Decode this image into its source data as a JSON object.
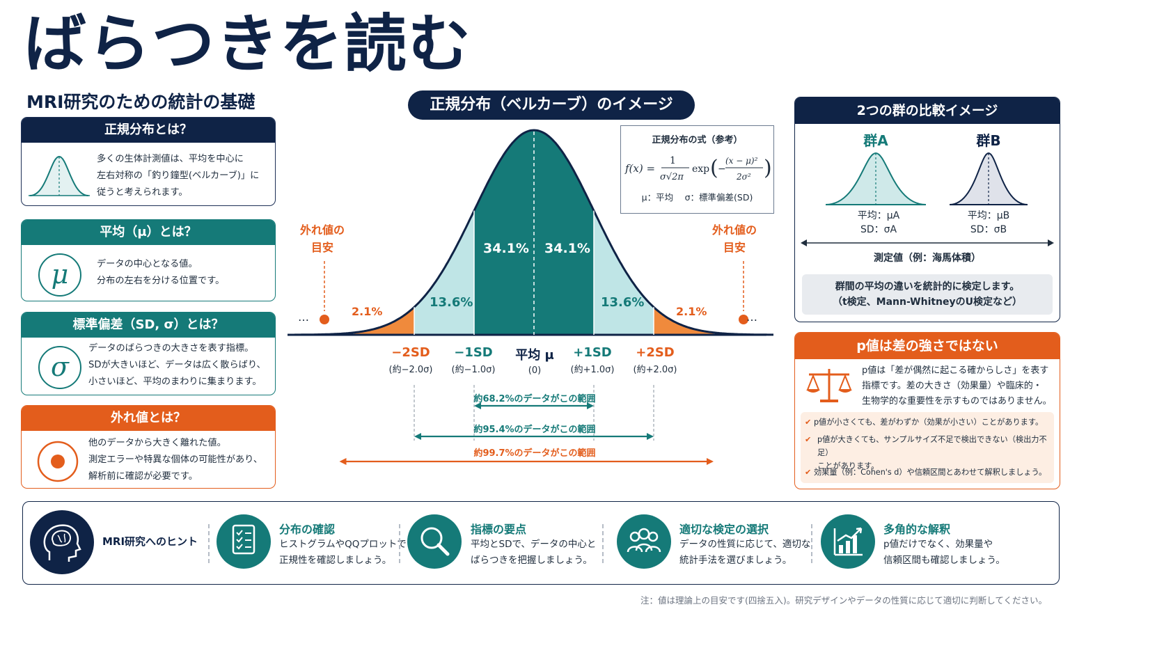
{
  "title": "ばらつきを読む",
  "subtitle": "MRI研究のための統計の基礎",
  "left_cards": [
    {
      "header": "正規分布とは？",
      "text": "多くの生体計測値は、平均を中心に\n左右対称の「釣り鐘型(ベルカーブ)」に\n従うと考えられます。",
      "icon": "bell-curve-icon"
    },
    {
      "header": "平均（μ）とは？",
      "text": "データの中心となる値。\n分布の左右を分ける位置です。",
      "icon_text": "μ"
    },
    {
      "header": "標準偏差（SD, σ）とは？",
      "text": "データのばらつきの大きさを表す指標。\nSDが大きいほど、データは広く散らばり、\n小さいほど、平均のまわりに集まります。",
      "icon_text": "σ"
    },
    {
      "header": "外れ値とは？",
      "text": "他のデータから大きく離れた値。\n測定エラーや特異な個体の可能性があり、\n解析前に確認が必要です。",
      "icon": "target-dot-icon"
    }
  ],
  "center": {
    "pill_title": "正規分布（ベルカーブ）のイメージ",
    "formula_title": "正規分布の式（参考）",
    "formula_legend": "μ：平均　 σ：標準偏差(SD)",
    "percent": {
      "inner_left": "34.1%",
      "inner_right": "34.1%",
      "mid_left": "13.6%",
      "mid_right": "13.6%",
      "tail_left": "2.1%",
      "tail_right": "2.1%"
    },
    "outlier_label_left": "外れ値の\n目安",
    "outlier_label_right": "外れ値の\n目安",
    "ellipsis": "…",
    "axis_labels": [
      {
        "main": "−2SD",
        "sub": "(約−2.0σ)"
      },
      {
        "main": "−1SD",
        "sub": "(約−1.0σ)"
      },
      {
        "main": "平均 μ",
        "sub": "(0)"
      },
      {
        "main": "+1SD",
        "sub": "(約+1.0σ)"
      },
      {
        "main": "+2SD",
        "sub": "(約+2.0σ)"
      }
    ],
    "ranges": [
      {
        "label": "約68.2%のデータがこの範囲",
        "color": "#157a78"
      },
      {
        "label": "約95.4%のデータがこの範囲",
        "color": "#157a78"
      },
      {
        "label": "約99.7%のデータがこの範囲",
        "color": "#e35d1c"
      }
    ],
    "colors": {
      "teal_dark": "#157a78",
      "teal_light": "#bfe5e6",
      "orange": "#f08a3c",
      "navy": "#0f2346"
    }
  },
  "compare": {
    "header": "2つの群の比較イメージ",
    "group_a": {
      "name": "群A",
      "mean": "平均：μA",
      "sd": "SD：σA"
    },
    "group_b": {
      "name": "群B",
      "mean": "平均：μB",
      "sd": "SD：σB"
    },
    "axis_label": "測定値（例：海馬体積）",
    "box_text": "群間の平均の違いを統計的に検定します。\n（t検定、Mann-WhitneyのU検定など）"
  },
  "pvalue": {
    "header": "p値は差の強さではない",
    "text": "p値は「差が偶然に起こる確からしさ」を表す\n指標です。差の大きさ（効果量）や臨床的・\n生物学的な重要性を示すものではありません。",
    "checks": [
      "p値が小さくても、差がわずか（効果が小さい）ことがあります。",
      "p値が大きくても、サンプルサイズ不足で検出できない（検出力不足）\nことがあります。",
      "効果量（例：Cohen's d）や信頼区間とあわせて解釈しましょう。"
    ]
  },
  "hints": {
    "lead": "MRI研究へのヒント",
    "items": [
      {
        "title": "分布の確認",
        "text": "ヒストグラムやQQプロットで\n正規性を確認しましょう。",
        "icon": "checklist-icon"
      },
      {
        "title": "指標の要点",
        "text": "平均とSDで、データの中心と\nばらつきを把握しましょう。",
        "icon": "magnifier-icon"
      },
      {
        "title": "適切な検定の選択",
        "text": "データの性質に応じて、適切な\n統計手法を選びましょう。",
        "icon": "people-icon"
      },
      {
        "title": "多角的な解釈",
        "text": "p値だけでなく、効果量や\n信頼区間も確認しましょう。",
        "icon": "bar-chart-icon"
      }
    ]
  },
  "footnote": "注：値は理論上の目安です(四捨五入)。研究デザインやデータの性質に応じて適切に判断してください。"
}
